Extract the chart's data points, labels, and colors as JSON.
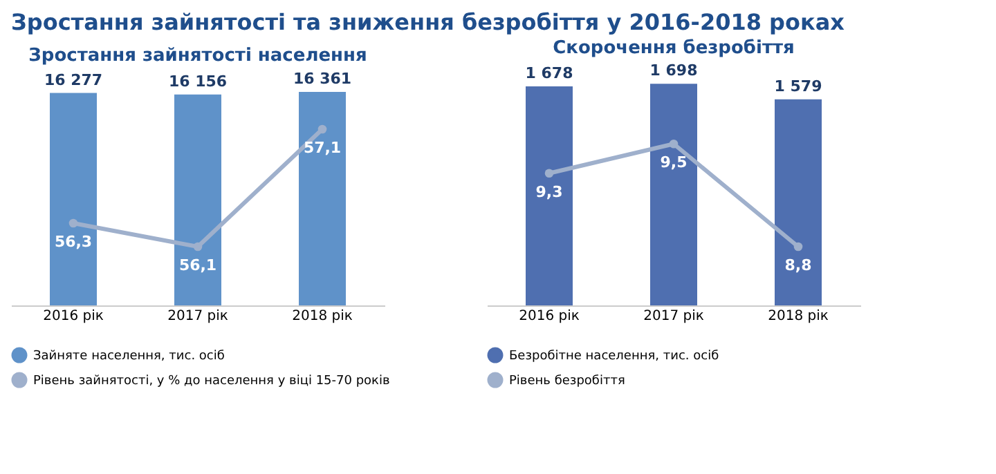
{
  "chart_data": [
    {
      "type": "bar",
      "title": "Зростання зайнятості та зниження безробіття у 2016-2018 роках",
      "subtitle": "Зростання зайнятості населення",
      "categories": [
        "2016 рік",
        "2017 рік",
        "2018 рік"
      ],
      "legend": "bottom",
      "marker": "circle",
      "series": [
        {
          "name": "Зайняте населення, тис. осіб",
          "color": "#5f92c9",
          "values": [
            16277,
            16156,
            16361
          ],
          "value_labels": [
            "16 277",
            "16 156",
            "16 361"
          ]
        },
        {
          "name": "Рівень зайнятості, у % до населення у віці 15-70 років",
          "type": "line",
          "axis": "y2",
          "color": "#9fb0cc",
          "values": [
            56.3,
            56.1,
            57.1
          ],
          "value_labels": [
            "56,3",
            "56,1",
            "57,1"
          ]
        }
      ]
    },
    {
      "type": "bar",
      "title": "Скорочення безробіття",
      "categories": [
        "2016 рік",
        "2017 рік",
        "2018 рік"
      ],
      "legend": "bottom",
      "marker": "circle",
      "series": [
        {
          "name": "Безробітне населення, тис. осіб",
          "color": "#4f6fb0",
          "values": [
            1678,
            1698,
            1579
          ],
          "value_labels": [
            "1 678",
            "1 698",
            "1 579"
          ]
        },
        {
          "name": "Рівень безробіття",
          "type": "line",
          "axis": "y2",
          "color": "#9fb0cc",
          "values": [
            9.3,
            9.5,
            8.8
          ],
          "value_labels": [
            "9,3",
            "9,5",
            "8,8"
          ]
        }
      ]
    }
  ]
}
